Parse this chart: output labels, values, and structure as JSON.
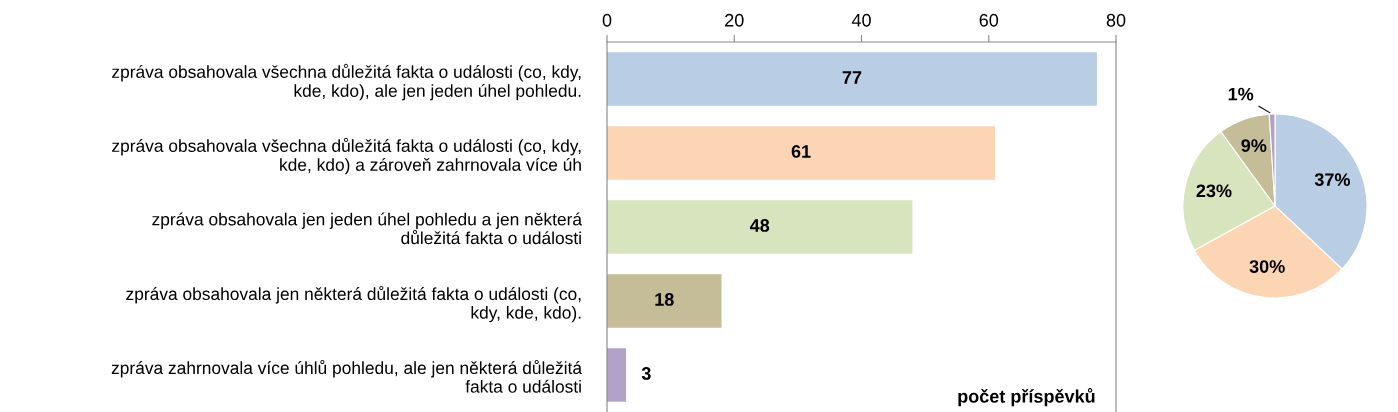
{
  "chart_data": [
    {
      "type": "bar",
      "orientation": "horizontal",
      "xlabel": "počet příspěvků",
      "categories": [
        "zpráva obsahovala všechna důležitá fakta o události (co, kdy,\nkde, kdo), ale jen jeden úhel pohledu.",
        "zpráva obsahovala všechna důležitá fakta o události (co, kdy,\nkde, kdo) a zároveň zahrnovala více úh",
        "zpráva obsahovala jen jeden úhel pohledu a jen některá\ndůležitá fakta o události",
        "zpráva obsahovala jen některá důležitá fakta o události (co,\nkdy, kde, kdo).",
        "zpráva zahrnovala více úhlů pohledu, ale jen některá důležitá\nfakta o události"
      ],
      "values": [
        77,
        61,
        48,
        18,
        3
      ],
      "colors": [
        "#b9cde5",
        "#fcd5b5",
        "#d7e4bd",
        "#c4bd97",
        "#b3a2c7"
      ],
      "xlim": [
        0,
        80
      ],
      "xticks": [
        0,
        20,
        40,
        60,
        80
      ],
      "grid": false,
      "data_labels": true
    },
    {
      "type": "pie",
      "categories": [
        null,
        null,
        null,
        null,
        null
      ],
      "values": [
        37,
        30,
        23,
        9,
        1
      ],
      "colors": [
        "#b9cde5",
        "#fcd5b5",
        "#d7e4bd",
        "#c4bd97",
        "#b3a2c7"
      ],
      "value_labels": [
        "37%",
        "30%",
        "23%",
        "9%",
        "1%"
      ],
      "legend": false
    }
  ]
}
